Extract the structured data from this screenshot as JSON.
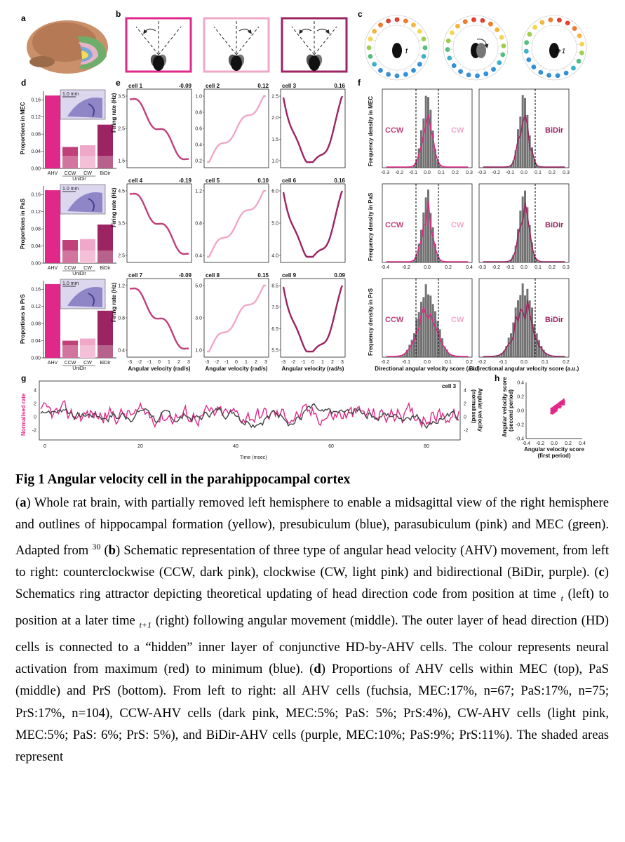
{
  "panels": {
    "a": "a",
    "b": "b",
    "c": "c",
    "d": "d",
    "e": "e",
    "f": "f",
    "g": "g",
    "h": "h"
  },
  "colors": {
    "ahv": "#e0288a",
    "ccw": "#c0407a",
    "cw": "#f0a8c8",
    "bidir": "#9c2462",
    "gray": "#555555"
  },
  "panel_c": {
    "label_t": "t",
    "label_t1": "t+1"
  },
  "panel_d": {
    "rows": [
      {
        "ylabel": "Proportions in MEC",
        "scale": "1.0 mm",
        "bars": {
          "AHV": 0.17,
          "CCW": 0.05,
          "CW": 0.054,
          "BiDir": 0.102
        },
        "yticks": [
          "0.00",
          "0.04",
          "0.08",
          "0.12",
          "0.16"
        ]
      },
      {
        "ylabel": "Proportions in PaS",
        "scale": "1.0 mm",
        "bars": {
          "AHV": 0.17,
          "CCW": 0.054,
          "CW": 0.056,
          "BiDir": 0.09
        },
        "yticks": [
          "0.00",
          "0.04",
          "0.08",
          "0.12",
          "0.16"
        ]
      },
      {
        "ylabel": "Proportions in PrS",
        "scale": "1.0 mm",
        "bars": {
          "AHV": 0.172,
          "CCW": 0.04,
          "CW": 0.045,
          "BiDir": 0.11
        },
        "yticks": [
          "0.00",
          "0.04",
          "0.08",
          "0.12",
          "0.16"
        ]
      }
    ],
    "xticks": [
      "AHV",
      "CCW",
      "CW",
      "BiDir"
    ],
    "group_label": "UniDir"
  },
  "panel_e": {
    "ylabel": "Firing rate (Hz)",
    "xlabel": "Angular velocity (rad/s)",
    "xticks": [
      "-3",
      "-2",
      "-1",
      "0",
      "1",
      "2",
      "3"
    ],
    "cells": [
      {
        "name": "cell 1",
        "score": "-0.09",
        "type": "ccw",
        "yticks": [
          "1.5",
          "2.5",
          "3.5"
        ]
      },
      {
        "name": "cell 2",
        "score": "0.12",
        "type": "cw",
        "yticks": [
          "0.2",
          "0.4",
          "0.6",
          "0.8",
          "1.0"
        ]
      },
      {
        "name": "cell 3",
        "score": "0.16",
        "type": "bidir",
        "yticks": [
          "1.0",
          "1.5",
          "2.0",
          "2.5"
        ]
      },
      {
        "name": "cell 4",
        "score": "-0.19",
        "type": "ccw",
        "yticks": [
          "2.5",
          "3.5",
          "4.5"
        ]
      },
      {
        "name": "cell 5",
        "score": "0.10",
        "type": "cw",
        "yticks": [
          "0.4",
          "0.8",
          "1.2"
        ]
      },
      {
        "name": "cell 6",
        "score": "0.16",
        "type": "bidir",
        "yticks": [
          "4.0",
          "5.0",
          "6.0"
        ]
      },
      {
        "name": "cell 7",
        "score": "-0.09",
        "type": "ccw",
        "yticks": [
          "0.4",
          "0.8",
          "1.2"
        ]
      },
      {
        "name": "cell 8",
        "score": "0.15",
        "type": "cw",
        "yticks": [
          "1.0",
          "3.0",
          "5.0"
        ]
      },
      {
        "name": "cell 9",
        "score": "0.09",
        "type": "bidir",
        "yticks": [
          "5.5",
          "6.5",
          "7.5",
          "8.5"
        ]
      }
    ]
  },
  "panel_f": {
    "ylabels": [
      "Frequency density in MEC",
      "Frequency density in PaS",
      "Frequency density in PrS"
    ],
    "xlabel_left": "Directional angular velocity score (a.u.)",
    "xlabel_right": "Bidirectional angular velocity score (a.u.)",
    "ccw": "CCW",
    "cw": "CW",
    "bidir": "BiDir",
    "left_xticks": [
      [
        "-0.3",
        "-0.2",
        "-0.1",
        "0.0",
        "0.1",
        "0.2",
        "0.3"
      ],
      [
        "-0.4",
        "-0.2",
        "0.0",
        "0.2",
        "0.4"
      ],
      [
        "-0.2",
        "-0.1",
        "0.0",
        "0.1",
        "0.2"
      ]
    ],
    "right_xticks": [
      [
        "-0.3",
        "-0.2",
        "-0.1",
        "0.0",
        "0.1",
        "0.2",
        "0.3"
      ],
      [
        "-0.3",
        "-0.2",
        "-0.1",
        "0.0",
        "0.1",
        "0.2",
        "0.3"
      ],
      [
        "-0.2",
        "-0.1",
        "0.0",
        "0.1",
        "0.2"
      ]
    ]
  },
  "panel_g": {
    "cell_label": "cell 3",
    "ylabel_left": "Normalised rate",
    "ylabel_right1": "Angular velocity",
    "ylabel_right2": "(normalised)",
    "xlabel": "Time (msec)",
    "xticks": [
      "0",
      "20",
      "40",
      "60",
      "80"
    ],
    "yticks_left": [
      "-2",
      "0",
      "2",
      "4"
    ],
    "yticks_right": [
      "-2",
      "0",
      "2",
      "4"
    ]
  },
  "panel_h": {
    "ylabel1": "Angular velocity score",
    "ylabel2": "(second period)",
    "xlabel1": "Angular velocity score",
    "xlabel2": "(first period)",
    "xticks": [
      "-0.4",
      "-0.2",
      "0.0",
      "0.2",
      "0.4"
    ],
    "yticks": [
      "-0.4",
      "-0.2",
      "0.0",
      "0.2",
      "0.4"
    ]
  },
  "caption": {
    "title": "Fig 1 Angular velocity cell in the parahippocampal cortex",
    "a_letter": "a",
    "a_text": " Whole rat brain, with partially removed left hemisphere to enable a midsagittal view of the right hemisphere and outlines of hippocampal formation (yellow), presubiculum (blue), parasubiculum (pink) and MEC (green). Adapted from ",
    "ref": "30",
    "b_letter": "b",
    "b_text": " Schematic representation of three type of angular head velocity (AHV) movement, from left to right: counterclockwise (CCW, dark pink), clockwise (CW, light pink) and bidirectional (BiDir, purple). (",
    "c_letter": "c",
    "c_text1": ") Schematics ring attractor depicting theoretical updating of head direction code from position at time ",
    "c_t": "t",
    "c_text2": " (left) to position at a later time ",
    "c_t1": "t+1",
    "c_text3": " (right) following angular movement (middle). The outer layer of head direction (HD) cells is connected to a “hidden” inner layer of conjunctive HD-by-AHV cells. The colour represents neural activation from maximum (red) to minimum (blue). (",
    "d_letter": "d",
    "d_text": ") Proportions of AHV cells within MEC (top), PaS (middle) and PrS (bottom). From left to right: all AHV cells (fuchsia, MEC:17%, n=67; PaS:17%, n=75; PrS:17%, n=104), CCW-AHV cells (dark pink, MEC:5%; PaS: 5%; PrS:4%), CW-AHV cells (light pink, MEC:5%; PaS: 6%; PrS: 5%), and BiDir-AHV cells (purple, MEC:10%; PaS:9%; PrS:11%). The shaded areas represent"
  }
}
